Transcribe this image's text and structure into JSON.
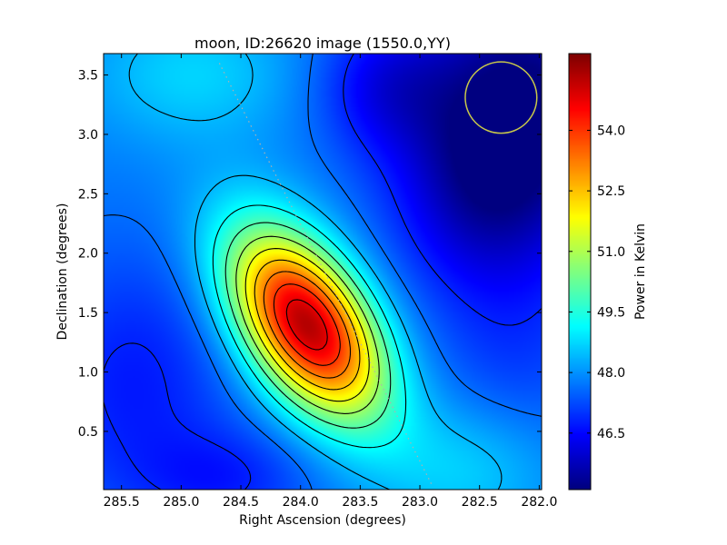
{
  "chart_data": {
    "type": "heatmap",
    "title": "moon, ID:26620 image (1550.0,YY)",
    "xlabel": "Right Ascension (degrees)",
    "ylabel": "Declination (degrees)",
    "colorbar_label": "Power in Kelvin",
    "colormap": "jet",
    "xlim": [
      285.65,
      281.98
    ],
    "ylim": [
      0.01,
      3.68
    ],
    "clim": [
      45.1,
      55.9
    ],
    "x_ticks": [
      285.5,
      285.0,
      284.5,
      284.0,
      283.5,
      283.0,
      282.5,
      282.0
    ],
    "x_tick_labels": [
      "285.5",
      "285.0",
      "284.5",
      "284.0",
      "283.5",
      "283.0",
      "282.5",
      "282.0"
    ],
    "y_ticks": [
      0.5,
      1.0,
      1.5,
      2.0,
      2.5,
      3.0,
      3.5
    ],
    "y_tick_labels": [
      "0.5",
      "1.0",
      "1.5",
      "2.0",
      "2.5",
      "3.0",
      "3.5"
    ],
    "colorbar_ticks": [
      46.5,
      48.0,
      49.5,
      51.0,
      52.5,
      54.0
    ],
    "colorbar_tick_labels": [
      "46.5",
      "48.0",
      "49.5",
      "51.0",
      "52.5",
      "54.0"
    ],
    "peak": {
      "ra": 283.95,
      "dec": 1.38,
      "value": 55.6
    },
    "beam_circle": {
      "ra": 282.32,
      "dec": 3.31,
      "radius_deg": 0.3,
      "color": "#c8c84a"
    },
    "track_line": {
      "from": [
        284.68,
        3.6
      ],
      "to": [
        282.9,
        0.05
      ],
      "style": "dotted",
      "color": "#b0b0b0"
    },
    "components": [
      {
        "kind": "base",
        "value": 47.8
      },
      {
        "kind": "gaussian",
        "ra": 283.95,
        "dec": 1.4,
        "sigma_ra": 0.45,
        "sigma_dec": 0.55,
        "tilt": -0.5,
        "amp": 7.6
      },
      {
        "kind": "gaussian",
        "ra": 282.1,
        "dec": 3.3,
        "sigma_ra": 0.7,
        "sigma_dec": 0.9,
        "tilt": 0,
        "amp": -2.6
      },
      {
        "kind": "gaussian",
        "ra": 282.5,
        "dec": 2.5,
        "sigma_ra": 0.5,
        "sigma_dec": 0.6,
        "tilt": 0,
        "amp": -1.3
      },
      {
        "kind": "gaussian",
        "ra": 283.3,
        "dec": 3.4,
        "sigma_ra": 0.4,
        "sigma_dec": 0.4,
        "tilt": 0,
        "amp": -1.2
      },
      {
        "kind": "gaussian",
        "ra": 285.4,
        "dec": 0.9,
        "sigma_ra": 0.6,
        "sigma_dec": 0.8,
        "tilt": 0,
        "amp": -1.1
      },
      {
        "kind": "gaussian",
        "ra": 284.6,
        "dec": 0.1,
        "sigma_ra": 0.5,
        "sigma_dec": 0.3,
        "tilt": 0,
        "amp": -0.9
      },
      {
        "kind": "gaussian",
        "ra": 282.6,
        "dec": 0.2,
        "sigma_ra": 0.5,
        "sigma_dec": 0.4,
        "tilt": 0,
        "amp": 0.9
      },
      {
        "kind": "gaussian",
        "ra": 284.9,
        "dec": 3.5,
        "sigma_ra": 0.6,
        "sigma_dec": 0.4,
        "tilt": 0,
        "amp": 0.9
      },
      {
        "kind": "gaussian",
        "ra": 282.2,
        "dec": 1.1,
        "sigma_ra": 0.5,
        "sigma_dec": 0.6,
        "tilt": 0,
        "amp": -0.6
      }
    ],
    "contour_levels": [
      46.8,
      47.6,
      48.4,
      49.2,
      50.0,
      50.8,
      51.6,
      52.4,
      53.2,
      54.0,
      54.8,
      55.5
    ],
    "grid": false,
    "legend": "none"
  }
}
